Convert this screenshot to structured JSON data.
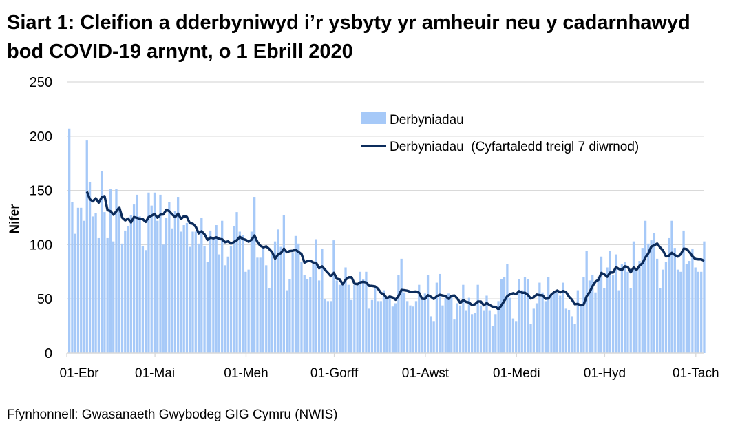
{
  "title": "Siart 1: Cleifion a dderbyniwyd i’r ysbyty yr amheuir neu y cadarnhawyd bod COVID-19 arnynt, o 1 Ebrill 2020",
  "source": "Ffynhonnell: Gwasanaeth Gwybodeg GIG Cymru (NWIS)",
  "colors": {
    "bars": "#a6c9f8",
    "line": "#0c2c5c",
    "grid": "#d9d9d9"
  },
  "chart_data": {
    "type": "bar",
    "ylabel": "Nifer",
    "xlabel": "",
    "ylim": [
      0,
      250
    ],
    "yticks": [
      0,
      50,
      100,
      150,
      200,
      250
    ],
    "grid": true,
    "legend_position": "top-right",
    "xlim": [
      "2020-04-01",
      "2020-11-02"
    ],
    "x_interval": "daily",
    "xticks": [
      {
        "day_index": 0,
        "label": "01-Ebr"
      },
      {
        "day_index": 30,
        "label": "01-Mai"
      },
      {
        "day_index": 61,
        "label": "01-Meh"
      },
      {
        "day_index": 91,
        "label": "01-Gorff"
      },
      {
        "day_index": 122,
        "label": "01-Awst"
      },
      {
        "day_index": 153,
        "label": "01-Medi"
      },
      {
        "day_index": 183,
        "label": "01-Hyd"
      },
      {
        "day_index": 214,
        "label": "01-Tach"
      }
    ],
    "series": [
      {
        "name": "Derbyniadau",
        "type": "bar",
        "values": [
          207,
          139,
          110,
          134,
          134,
          122,
          196,
          158,
          126,
          129,
          106,
          168,
          130,
          106,
          151,
          103,
          151,
          132,
          101,
          113,
          117,
          127,
          137,
          146,
          126,
          99,
          95,
          148,
          136,
          148,
          122,
          146,
          100,
          125,
          139,
          115,
          131,
          144,
          112,
          118,
          120,
          98,
          112,
          112,
          101,
          125,
          99,
          84,
          113,
          107,
          118,
          91,
          122,
          81,
          89,
          99,
          117,
          130,
          112,
          109,
          75,
          77,
          112,
          144,
          88,
          88,
          99,
          81,
          60,
          91,
          103,
          114,
          98,
          127,
          58,
          68,
          93,
          108,
          101,
          84,
          72,
          68,
          70,
          82,
          105,
          67,
          96,
          50,
          48,
          48,
          104,
          67,
          63,
          65,
          79,
          63,
          49,
          63,
          63,
          75,
          68,
          75,
          41,
          49,
          60,
          48,
          48,
          58,
          51,
          51,
          43,
          46,
          72,
          87,
          56,
          48,
          44,
          43,
          48,
          63,
          49,
          55,
          72,
          34,
          29,
          65,
          73,
          44,
          51,
          55,
          53,
          31,
          46,
          44,
          63,
          39,
          51,
          36,
          37,
          63,
          44,
          39,
          53,
          39,
          25,
          36,
          48,
          68,
          70,
          82,
          51,
          32,
          29,
          68,
          58,
          70,
          68,
          27,
          41,
          46,
          65,
          56,
          48,
          70,
          53,
          56,
          56,
          53,
          65,
          41,
          40,
          34,
          27,
          58,
          44,
          70,
          94,
          67,
          72,
          56,
          70,
          89,
          60,
          79,
          94,
          72,
          91,
          58,
          82,
          84,
          75,
          60,
          103,
          76,
          85,
          97,
          122,
          101,
          104,
          111,
          87,
          60,
          77,
          84,
          106,
          122,
          97,
          77,
          75,
          113,
          82,
          85,
          96,
          79,
          75,
          75,
          103
        ]
      },
      {
        "name": "Derbyniadau  (Cyfartaledd treigl 7 diwrnod)",
        "type": "line",
        "rolling_window_days": 7
      }
    ]
  }
}
